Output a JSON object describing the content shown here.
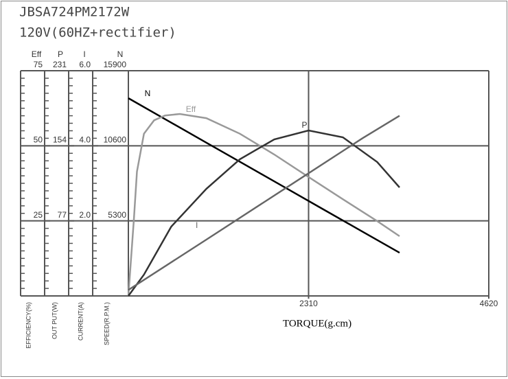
{
  "chart_data": {
    "type": "line",
    "title": "JBSA724PM2172W",
    "subtitle": "120V(60HZ+rectifier)",
    "x_label": "TORQUE(g.cm)",
    "xlim": [
      0,
      4620
    ],
    "xticks": [
      2310,
      4620
    ],
    "y_axes": [
      {
        "name": "Eff",
        "label": "EFFICIENCY(%)",
        "ylim": [
          0,
          75
        ],
        "yticks": [
          25,
          50,
          75
        ]
      },
      {
        "name": "P",
        "label": "OUT PUT(W)",
        "ylim": [
          0,
          231
        ],
        "yticks": [
          77,
          154,
          231
        ]
      },
      {
        "name": "I",
        "label": "CURRENT(A)",
        "ylim": [
          0,
          6
        ],
        "yticks": [
          {
            "value": 2,
            "label": "2.0"
          },
          {
            "value": 4,
            "label": "4.0"
          },
          {
            "value": 6,
            "label": "6.0"
          }
        ]
      },
      {
        "name": "N",
        "label": "SPEED(R.P.M.)",
        "ylim": [
          0,
          15900
        ],
        "yticks": [
          5300,
          10600,
          15900
        ]
      }
    ],
    "series": [
      {
        "name": "N",
        "axis": 3,
        "color": "#000000",
        "x": [
          0,
          500,
          1000,
          1500,
          2000,
          2500,
          3000,
          3476
        ],
        "values": [
          13960,
          12390,
          10820,
          9250,
          7680,
          6110,
          4540,
          3050
        ]
      },
      {
        "name": "Eff",
        "axis": 0,
        "color": "#999999",
        "x": [
          0,
          70,
          110,
          200,
          330,
          470,
          660,
          1000,
          1430,
          1870,
          2310,
          2750,
          3190,
          3476
        ],
        "values": [
          0,
          25.4,
          41.4,
          54,
          58.5,
          60.1,
          60.6,
          59.2,
          54,
          47.1,
          39.6,
          32.2,
          24.9,
          19.9
        ]
      },
      {
        "name": "P",
        "axis": 1,
        "color": "#333333",
        "x": [
          0,
          200,
          550,
          1000,
          1430,
          1870,
          2310,
          2750,
          3190,
          3476
        ],
        "values": [
          0,
          21.8,
          71.1,
          109.9,
          140.2,
          160.6,
          169.7,
          162.7,
          137.3,
          111.3
        ]
      },
      {
        "name": "I",
        "axis": 2,
        "color": "#666666",
        "x": [
          0,
          1000,
          2000,
          3000,
          3476
        ],
        "values": [
          0.16,
          1.5,
          2.85,
          4.2,
          4.8
        ]
      }
    ]
  }
}
